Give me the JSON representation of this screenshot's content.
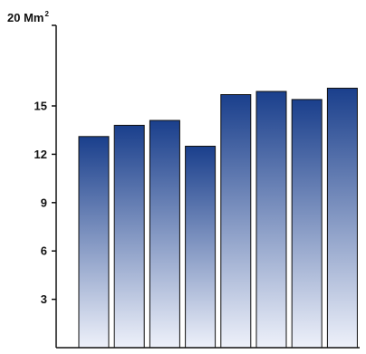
{
  "chart_data": {
    "type": "bar",
    "categories": [
      "",
      "",
      "",
      "",
      "",
      "",
      "",
      ""
    ],
    "values": [
      13.1,
      13.8,
      14.1,
      12.5,
      15.7,
      15.9,
      15.4,
      16.1
    ],
    "ylim": [
      0,
      20
    ],
    "yticks": [
      3,
      6,
      9,
      12,
      15
    ],
    "ytick_labels": [
      "3",
      "6",
      "9",
      "12",
      "15"
    ],
    "ylabel": "20 Mm",
    "ylabel_superscript": "2",
    "bar_gradient": {
      "top": "#1a3f8c",
      "bottom": "#eef1fa"
    },
    "grid": false,
    "legend": "none"
  }
}
